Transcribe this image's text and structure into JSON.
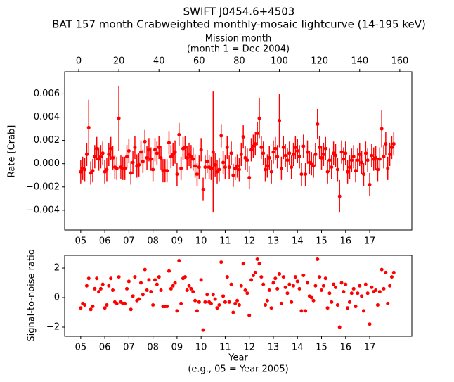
{
  "chart_data": [
    {
      "type": "errorbar",
      "title": "SWIFT J0454.6+4503",
      "subtitle": "BAT 157 month Crabweighted monthly-mosaic lightcurve (14-195 keV)",
      "x2label": [
        "Mission month",
        "(month 1 = Dec 2004)"
      ],
      "ylabel": "Rate [Crab]",
      "color": "#ff0000",
      "xlim": [
        -7,
        166
      ],
      "ylim": [
        -0.0057,
        0.0079
      ],
      "x2ticks": [
        0,
        20,
        40,
        60,
        80,
        100,
        120,
        140,
        160
      ],
      "xticks": [
        {
          "value": 1,
          "label": "05"
        },
        {
          "value": 13,
          "label": "06"
        },
        {
          "value": 25,
          "label": "07"
        },
        {
          "value": 37,
          "label": "08"
        },
        {
          "value": 49,
          "label": "09"
        },
        {
          "value": 61,
          "label": "10"
        },
        {
          "value": 73,
          "label": "11"
        },
        {
          "value": 85,
          "label": "12"
        },
        {
          "value": 97,
          "label": "13"
        },
        {
          "value": 109,
          "label": "14"
        },
        {
          "value": 121,
          "label": "15"
        },
        {
          "value": 133,
          "label": "16"
        },
        {
          "value": 145,
          "label": "17"
        }
      ],
      "yticks": [
        {
          "value": -0.004,
          "label": "−0.004"
        },
        {
          "value": -0.002,
          "label": "−0.002"
        },
        {
          "value": 0,
          "label": "0.000"
        },
        {
          "value": 0.002,
          "label": "0.002"
        },
        {
          "value": 0.004,
          "label": "0.004"
        },
        {
          "value": 0.006,
          "label": "0.006"
        }
      ],
      "x": [
        1,
        2,
        3,
        4,
        5,
        6,
        7,
        8,
        9,
        10,
        11,
        12,
        13,
        14,
        15,
        16,
        17,
        18,
        19,
        20,
        21,
        22,
        23,
        24,
        25,
        26,
        27,
        28,
        29,
        30,
        31,
        32,
        33,
        34,
        35,
        36,
        37,
        38,
        39,
        40,
        41,
        42,
        43,
        44,
        45,
        46,
        47,
        48,
        49,
        50,
        51,
        52,
        53,
        54,
        55,
        56,
        57,
        58,
        59,
        60,
        61,
        62,
        63,
        64,
        65,
        66,
        67,
        68,
        69,
        70,
        71,
        72,
        73,
        74,
        75,
        76,
        77,
        78,
        79,
        80,
        81,
        82,
        83,
        84,
        85,
        86,
        87,
        88,
        89,
        90,
        91,
        92,
        93,
        94,
        95,
        96,
        97,
        98,
        99,
        100,
        101,
        102,
        103,
        104,
        105,
        106,
        107,
        108,
        109,
        110,
        111,
        112,
        113,
        114,
        115,
        116,
        117,
        118,
        119,
        120,
        121,
        122,
        123,
        124,
        125,
        126,
        127,
        128,
        129,
        130,
        131,
        132,
        133,
        134,
        135,
        136,
        137,
        138,
        139,
        140,
        141,
        142,
        143,
        144,
        145,
        146,
        147,
        148,
        149,
        150,
        151,
        152,
        153,
        154,
        155,
        156,
        157
      ],
      "values": [
        -0.0007,
        -0.0004,
        -0.0005,
        0.0008,
        0.0031,
        -0.0008,
        -0.0006,
        0.0006,
        0.0013,
        0.0004,
        0.0006,
        0.0009,
        -0.0007,
        -0.0005,
        0.0008,
        0.0013,
        0.0005,
        -0.0003,
        -0.0004,
        0.0039,
        -0.0003,
        -0.0004,
        -0.0004,
        0.0006,
        0.0011,
        -0.0008,
        0.0001,
        0.0014,
        -0.0002,
        -0.0001,
        0.001,
        0.0002,
        0.0019,
        0.0005,
        0.0012,
        0.0004,
        -0.0005,
        0.0012,
        0.0009,
        0.0014,
        0.0005,
        -0.0006,
        -0.0006,
        -0.0006,
        0.0018,
        0.0006,
        0.0008,
        0.001,
        -0.0009,
        0.0025,
        -0.0004,
        0.0013,
        0.0014,
        0.0005,
        0.0008,
        0.0006,
        0.0004,
        -0.0002,
        -0.0009,
        -0.0003,
        0.0012,
        -0.0022,
        -0.0003,
        0.0002,
        -0.0003,
        -0.0004,
        0.001,
        -0.0001,
        -0.0007,
        -0.0005,
        0.0024,
        0.0001,
        -0.0003,
        0.0014,
        -0.0003,
        0.0009,
        -0.001,
        -0.0004,
        -0.0002,
        -0.0005,
        0.0008,
        0.0023,
        0.0005,
        0.0003,
        -0.0012,
        0.0012,
        0.0015,
        0.0017,
        0.0026,
        0.0039,
        0.0014,
        0.0009,
        -0.0005,
        -0.0002,
        0.0005,
        -0.0007,
        0.001,
        0.0013,
        0.0006,
        0.0037,
        -0.0004,
        0.0014,
        0.0007,
        0.0003,
        0.0009,
        -0.0003,
        0.0008,
        0.0014,
        0.0011,
        0.0006,
        -0.0009,
        0.0015,
        -0.0009,
        0.001,
        0.0001,
        0,
        -0.0002,
        0.0008,
        0.0034,
        0.0014,
        0.0005,
        0.0008,
        0.0013,
        -0.0007,
        0.0003,
        -0.0003,
        0.0009,
        0.0007,
        -0.0005,
        -0.0028,
        0.001,
        0.0004,
        0.0009,
        -0.0007,
        -0.0003,
        0.0003,
        0.0006,
        -0.0006,
        0.0003,
        0.0008,
        0.0001,
        -0.0009,
        0.0009,
        0.0003,
        -0.0018,
        0.0007,
        0.0004,
        0.0005,
        -0.0005,
        0.0004,
        0.003,
        0.0006,
        0.0017,
        -0.0004,
        0.0008,
        0.0014,
        0.0017
      ],
      "errors": [
        0.001,
        0.001,
        0.001,
        0.001,
        0.0024,
        0.001,
        0.001,
        0.001,
        0.001,
        0.001,
        0.001,
        0.001,
        0.001,
        0.001,
        0.001,
        0.001,
        0.001,
        0.001,
        0.001,
        0.0028,
        0.001,
        0.001,
        0.001,
        0.001,
        0.001,
        0.001,
        0.001,
        0.001,
        0.001,
        0.001,
        0.001,
        0.001,
        0.001,
        0.001,
        0.001,
        0.001,
        0.001,
        0.001,
        0.001,
        0.001,
        0.001,
        0.001,
        0.001,
        0.001,
        0.001,
        0.001,
        0.001,
        0.001,
        0.001,
        0.001,
        0.001,
        0.001,
        0.001,
        0.001,
        0.001,
        0.001,
        0.001,
        0.001,
        0.001,
        0.001,
        0.001,
        0.001,
        0.001,
        0.001,
        0.001,
        0.001,
        0.0052,
        0.001,
        0.001,
        0.001,
        0.001,
        0.001,
        0.001,
        0.001,
        0.001,
        0.001,
        0.001,
        0.001,
        0.001,
        0.001,
        0.001,
        0.001,
        0.001,
        0.001,
        0.001,
        0.001,
        0.001,
        0.001,
        0.001,
        0.0017,
        0.001,
        0.001,
        0.001,
        0.001,
        0.001,
        0.001,
        0.001,
        0.001,
        0.001,
        0.0023,
        0.001,
        0.001,
        0.001,
        0.001,
        0.001,
        0.001,
        0.001,
        0.001,
        0.001,
        0.001,
        0.001,
        0.001,
        0.001,
        0.001,
        0.001,
        0.001,
        0.001,
        0.001,
        0.0013,
        0.001,
        0.001,
        0.001,
        0.001,
        0.001,
        0.001,
        0.001,
        0.001,
        0.001,
        0.001,
        0.0014,
        0.001,
        0.001,
        0.001,
        0.001,
        0.001,
        0.001,
        0.001,
        0.001,
        0.001,
        0.001,
        0.001,
        0.001,
        0.001,
        0.001,
        0.001,
        0.001,
        0.001,
        0.001,
        0.001,
        0.001,
        0.0016,
        0.001,
        0.001,
        0.001,
        0.001,
        0.001,
        0.001
      ]
    },
    {
      "type": "scatter",
      "xlabel": [
        "Year",
        "(e.g., 05 = Year 2005)"
      ],
      "ylabel": "Signal-to-noise ratio",
      "color": "#ff0000",
      "xlim": [
        -7,
        166
      ],
      "ylim": [
        -2.62,
        2.86
      ],
      "xticks": [
        {
          "value": 1,
          "label": "05"
        },
        {
          "value": 13,
          "label": "06"
        },
        {
          "value": 25,
          "label": "07"
        },
        {
          "value": 37,
          "label": "08"
        },
        {
          "value": 49,
          "label": "09"
        },
        {
          "value": 61,
          "label": "10"
        },
        {
          "value": 73,
          "label": "11"
        },
        {
          "value": 85,
          "label": "12"
        },
        {
          "value": 97,
          "label": "13"
        },
        {
          "value": 109,
          "label": "14"
        },
        {
          "value": 121,
          "label": "15"
        },
        {
          "value": 133,
          "label": "16"
        },
        {
          "value": 145,
          "label": "17"
        }
      ],
      "yticks": [
        {
          "value": -2,
          "label": "−2"
        },
        0,
        2
      ],
      "x": [
        1,
        2,
        3,
        4,
        5,
        6,
        7,
        8,
        9,
        10,
        11,
        12,
        13,
        14,
        15,
        16,
        17,
        18,
        19,
        20,
        21,
        22,
        23,
        24,
        25,
        26,
        27,
        28,
        29,
        30,
        31,
        32,
        33,
        34,
        35,
        36,
        37,
        38,
        39,
        40,
        41,
        42,
        43,
        44,
        45,
        46,
        47,
        48,
        49,
        50,
        51,
        52,
        53,
        54,
        55,
        56,
        57,
        58,
        59,
        60,
        61,
        62,
        63,
        64,
        65,
        66,
        67,
        68,
        69,
        70,
        71,
        72,
        73,
        74,
        75,
        76,
        77,
        78,
        79,
        80,
        81,
        82,
        83,
        84,
        85,
        86,
        87,
        88,
        89,
        90,
        91,
        92,
        93,
        94,
        95,
        96,
        97,
        98,
        99,
        100,
        101,
        102,
        103,
        104,
        105,
        106,
        107,
        108,
        109,
        110,
        111,
        112,
        113,
        114,
        115,
        116,
        117,
        118,
        119,
        120,
        121,
        122,
        123,
        124,
        125,
        126,
        127,
        128,
        129,
        130,
        131,
        132,
        133,
        134,
        135,
        136,
        137,
        138,
        139,
        140,
        141,
        142,
        143,
        144,
        145,
        146,
        147,
        148,
        149,
        150,
        151,
        152,
        153,
        154,
        155,
        156,
        157
      ],
      "values": [
        -0.7,
        -0.4,
        -0.5,
        0.8,
        1.3,
        -0.8,
        -0.6,
        0.6,
        1.3,
        0.4,
        0.6,
        0.9,
        -0.7,
        -0.5,
        0.8,
        1.3,
        0.5,
        -0.3,
        -0.4,
        1.4,
        -0.3,
        -0.4,
        -0.4,
        0.6,
        1.1,
        -0.8,
        0.1,
        1.4,
        -0.2,
        -0.1,
        1.0,
        0.2,
        1.9,
        0.5,
        1.2,
        0.4,
        -0.5,
        1.2,
        0.9,
        1.4,
        0.5,
        -0.6,
        -0.6,
        -0.6,
        1.8,
        0.6,
        0.8,
        1.0,
        -0.9,
        2.5,
        -0.4,
        1.3,
        1.4,
        0.5,
        0.8,
        0.6,
        0.4,
        -0.2,
        -0.9,
        -0.3,
        1.2,
        -2.2,
        -0.3,
        0.2,
        -0.3,
        -0.4,
        0.2,
        -0.1,
        -0.7,
        -0.5,
        2.4,
        0.1,
        -0.3,
        1.4,
        -0.3,
        0.9,
        -1.0,
        -0.4,
        -0.2,
        -0.5,
        0.8,
        2.3,
        0.5,
        0.3,
        -1.2,
        1.2,
        1.5,
        1.7,
        2.6,
        2.3,
        1.4,
        0.9,
        -0.5,
        -0.2,
        0.5,
        -0.7,
        1.0,
        1.3,
        0.6,
        1.6,
        -0.4,
        1.4,
        0.7,
        0.3,
        0.9,
        -0.3,
        0.8,
        1.4,
        1.1,
        0.6,
        -0.9,
        1.5,
        -0.9,
        1.0,
        0.1,
        0.0,
        -0.2,
        0.8,
        2.6,
        1.4,
        0.5,
        0.8,
        1.3,
        -0.7,
        0.3,
        -0.3,
        0.9,
        0.7,
        -0.5,
        -2.0,
        1.0,
        0.4,
        0.9,
        -0.7,
        -0.3,
        0.3,
        0.6,
        -0.6,
        0.3,
        0.8,
        0.1,
        -0.9,
        0.9,
        0.3,
        -1.8,
        0.7,
        0.4,
        0.5,
        -0.5,
        0.4,
        1.9,
        0.6,
        1.7,
        -0.4,
        0.8,
        1.4,
        1.7
      ]
    }
  ]
}
